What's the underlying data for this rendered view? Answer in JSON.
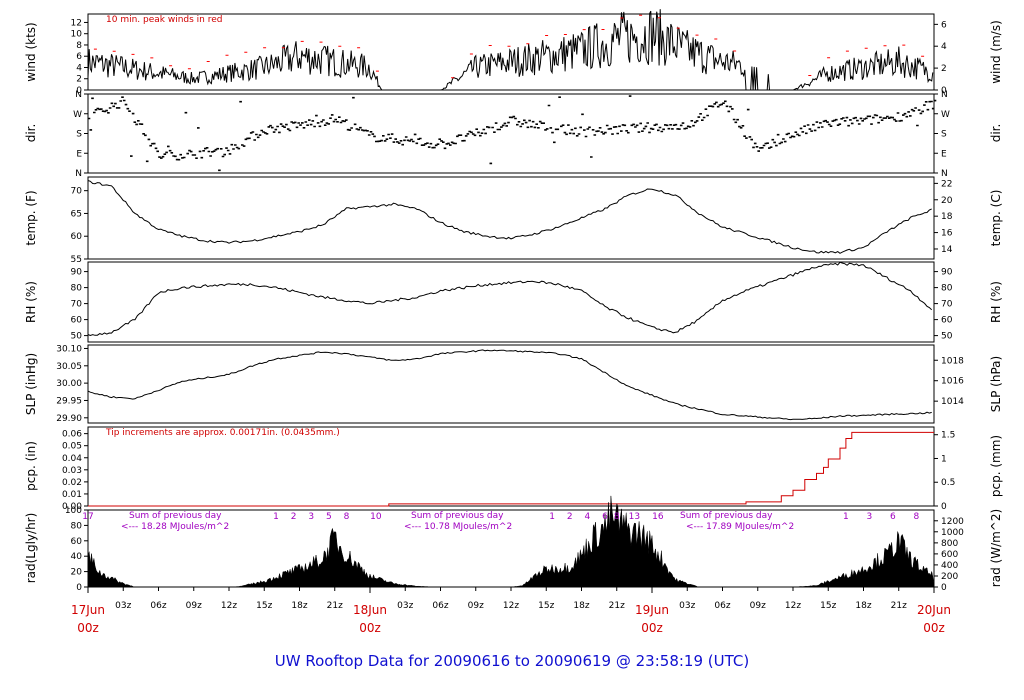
{
  "title": "UW Rooftop Data for 20090616  to  20090619 @ 23:58:19  (UTC)",
  "x_hour_labels": [
    "03z",
    "06z",
    "09z",
    "12z",
    "15z",
    "18z",
    "21z"
  ],
  "day_labels": [
    {
      "day": "17Jun",
      "time": "00z"
    },
    {
      "day": "18Jun",
      "time": "00z"
    },
    {
      "day": "19Jun",
      "time": "00z"
    },
    {
      "day": "20Jun",
      "time": "00z"
    }
  ],
  "panels": {
    "wind": {
      "ylabel_left": "wind (kts)",
      "ylabel_right": "wind (m/s)",
      "note": "10 min. peak winds in red",
      "ticks_left": [
        "0",
        "2",
        "4",
        "6",
        "8",
        "10",
        "12"
      ],
      "ticks_right": [
        "0",
        "2",
        "4",
        "6"
      ]
    },
    "dir": {
      "ylabel_left": "dir.",
      "ylabel_right": "dir.",
      "ticks": [
        "N",
        "E",
        "S",
        "W",
        "N"
      ]
    },
    "temp": {
      "ylabel_left": "temp. (F)",
      "ylabel_right": "temp. (C)",
      "ticks_left": [
        "55",
        "60",
        "65",
        "70"
      ],
      "ticks_right": [
        "14",
        "16",
        "18",
        "20",
        "22"
      ]
    },
    "rh": {
      "ylabel_left": "RH (%)",
      "ylabel_right": "RH (%)",
      "ticks_left": [
        "50",
        "60",
        "70",
        "80",
        "90"
      ],
      "ticks_right": [
        "50",
        "60",
        "70",
        "80",
        "90"
      ]
    },
    "slp": {
      "ylabel_left": "SLP (inHg)",
      "ylabel_right": "SLP (hPa)",
      "ticks_left": [
        "29.90",
        "29.95",
        "30.00",
        "30.05",
        "30.10"
      ],
      "ticks_right": [
        "1014",
        "1016",
        "1018"
      ]
    },
    "pcp": {
      "ylabel_left": "pcp. (in)",
      "ylabel_right": "pcp. (mm)",
      "note": "Tip increments are approx. 0.00171in. (0.0435mm.)",
      "ticks_left": [
        "0.00",
        "0.01",
        "0.02",
        "0.03",
        "0.04",
        "0.05",
        "0.06"
      ],
      "ticks_right": [
        "0",
        "0.5",
        "1",
        "1.5"
      ]
    },
    "rad": {
      "ylabel_left": "rad(Lgly/hr)",
      "ylabel_right": "rad (W/m^2)",
      "ticks_left": [
        "0",
        "20",
        "40",
        "60",
        "80",
        "100"
      ],
      "ticks_right": [
        "0",
        "200",
        "400",
        "600",
        "800",
        "1000",
        "1200"
      ],
      "hour_marks": [
        {
          "hour": 0,
          "label": "17"
        },
        {
          "hour": 16,
          "label": "1"
        },
        {
          "hour": 17.5,
          "label": "2"
        },
        {
          "hour": 19,
          "label": "3"
        },
        {
          "hour": 20.5,
          "label": "5"
        },
        {
          "hour": 22,
          "label": "8"
        },
        {
          "hour": 24.5,
          "label": "10"
        },
        {
          "hour": 39.5,
          "label": "1"
        },
        {
          "hour": 41,
          "label": "2"
        },
        {
          "hour": 42.5,
          "label": "4"
        },
        {
          "hour": 44,
          "label": "6"
        },
        {
          "hour": 45,
          "label": "8"
        },
        {
          "hour": 46.5,
          "label": "13"
        },
        {
          "hour": 48.5,
          "label": "16"
        },
        {
          "hour": 64.5,
          "label": "1"
        },
        {
          "hour": 66.5,
          "label": "3"
        },
        {
          "hour": 68.5,
          "label": "6"
        },
        {
          "hour": 70.5,
          "label": "8"
        }
      ],
      "daily_sums": [
        {
          "line1": "Sum of previous day",
          "line2": "<--- 18.28 MJoules/m^2"
        },
        {
          "line1": "Sum of previous day",
          "line2": "<--- 10.78 MJoules/m^2"
        },
        {
          "line1": "Sum of previous day",
          "line2": "<--- 17.89 MJoules/m^2"
        }
      ]
    }
  },
  "colors": {
    "data": "#000000",
    "peak": "#ff0000",
    "precip": "#d00000",
    "note": "#d00000",
    "sum": "#a000c0",
    "title": "#1010d0",
    "day": "#d00000"
  },
  "chart_data": [
    {
      "type": "line",
      "ylabel": "wind (kts)",
      "ylim": [
        0,
        13.5
      ],
      "x_hours": [
        0,
        3,
        6,
        9,
        12,
        15,
        18,
        21,
        24,
        25,
        30,
        33,
        36,
        39,
        42,
        45,
        48,
        51,
        54,
        57,
        60,
        63,
        66,
        69,
        72
      ],
      "series": [
        {
          "name": "wind",
          "values": [
            5,
            4,
            3,
            2,
            3,
            4,
            6,
            5,
            4,
            0,
            0,
            4,
            5,
            6,
            7,
            9,
            10,
            7,
            5,
            4,
            0,
            3,
            4,
            5,
            3
          ]
        },
        {
          "name": "10 min. peak winds",
          "values": [
            8,
            7,
            5,
            4,
            6,
            7,
            9,
            8,
            7,
            0,
            0,
            7,
            8,
            9,
            10,
            12,
            13,
            10,
            8,
            6,
            0,
            6,
            7,
            8,
            6
          ]
        }
      ]
    },
    {
      "type": "scatter",
      "ylabel": "dir.",
      "yticks": [
        "N",
        "E",
        "S",
        "W",
        "N"
      ],
      "x_hours": [
        0,
        3,
        6,
        9,
        12,
        15,
        18,
        21,
        24,
        27,
        30,
        33,
        36,
        39,
        42,
        45,
        48,
        51,
        54,
        57,
        60,
        63,
        66,
        69,
        72
      ],
      "series": [
        {
          "name": "direction_deg",
          "values": [
            260,
            330,
            80,
            90,
            110,
            200,
            220,
            250,
            170,
            150,
            130,
            180,
            240,
            210,
            190,
            200,
            210,
            220,
            330,
            100,
            180,
            230,
            240,
            260,
            320
          ]
        }
      ]
    },
    {
      "type": "line",
      "ylabel": "temp. (F)",
      "ylim": [
        55,
        73
      ],
      "x_hours": [
        0,
        2,
        4,
        6,
        8,
        10,
        12,
        14,
        16,
        18,
        20,
        22,
        24,
        26,
        28,
        30,
        32,
        34,
        36,
        38,
        40,
        42,
        44,
        46,
        48,
        50,
        52,
        54,
        56,
        58,
        60,
        62,
        64,
        66,
        68,
        70,
        72
      ],
      "series": [
        {
          "name": "temperature",
          "values": [
            72,
            71,
            65,
            61.5,
            60,
            59,
            58.6,
            59,
            60,
            61,
            62.5,
            66,
            66.5,
            67,
            66,
            63,
            61,
            60,
            59.5,
            60.5,
            62,
            64,
            66,
            69,
            70.5,
            69,
            65,
            62,
            60.5,
            59,
            57.5,
            56.5,
            56.5,
            57.5,
            61,
            64,
            66
          ]
        }
      ]
    },
    {
      "type": "line",
      "ylabel": "RH (%)",
      "ylim": [
        46,
        96
      ],
      "x_hours": [
        0,
        2,
        4,
        6,
        8,
        10,
        12,
        14,
        16,
        18,
        20,
        22,
        24,
        26,
        28,
        30,
        32,
        34,
        36,
        38,
        40,
        42,
        44,
        46,
        48,
        50,
        52,
        54,
        56,
        58,
        60,
        62,
        64,
        66,
        68,
        70,
        72
      ],
      "series": [
        {
          "name": "RH",
          "values": [
            50,
            52,
            60,
            77,
            80,
            81,
            82,
            82,
            80,
            77,
            74,
            72,
            70,
            72,
            74,
            78,
            80,
            82,
            83,
            84,
            82,
            78,
            68,
            61,
            55,
            52,
            60,
            72,
            78,
            83,
            88,
            93,
            95,
            94,
            86,
            78,
            65
          ]
        }
      ]
    },
    {
      "type": "line",
      "ylabel": "SLP (inHg)",
      "ylim": [
        29.885,
        30.11
      ],
      "x_hours": [
        0,
        2,
        4,
        6,
        8,
        10,
        12,
        14,
        16,
        18,
        20,
        22,
        24,
        26,
        28,
        30,
        32,
        34,
        36,
        38,
        40,
        42,
        44,
        46,
        48,
        50,
        52,
        54,
        56,
        58,
        60,
        62,
        64,
        66,
        68,
        70,
        72
      ],
      "series": [
        {
          "name": "SLP",
          "values": [
            29.975,
            29.96,
            29.955,
            29.98,
            30.005,
            30.015,
            30.025,
            30.05,
            30.07,
            30.08,
            30.09,
            30.085,
            30.075,
            30.065,
            30.07,
            30.085,
            30.09,
            30.095,
            30.093,
            30.09,
            30.085,
            30.07,
            30.03,
            29.99,
            29.965,
            29.94,
            29.925,
            29.91,
            29.905,
            29.9,
            29.895,
            29.898,
            29.905,
            29.907,
            29.91,
            29.912,
            29.915
          ]
        }
      ]
    },
    {
      "type": "line",
      "ylabel": "pcp. (in)",
      "ylim": [
        0,
        0.0655
      ],
      "x_hours": [
        0,
        25.5,
        25.6,
        55,
        56,
        59,
        60,
        61,
        62,
        62.6,
        63,
        64,
        64.5,
        65,
        72
      ],
      "series": [
        {
          "name": "precip",
          "values": [
            0,
            0,
            0.0017,
            0.0017,
            0.0034,
            0.0085,
            0.013,
            0.022,
            0.027,
            0.032,
            0.039,
            0.048,
            0.056,
            0.061,
            0.061
          ]
        }
      ]
    },
    {
      "type": "area",
      "ylabel": "rad(Lgly/hr)",
      "ylim": [
        0,
        100
      ],
      "x_hours": [
        0,
        1,
        3,
        4,
        6,
        8,
        10,
        12,
        13,
        15,
        17,
        18,
        19,
        20,
        21,
        21.5,
        22,
        23,
        24,
        26,
        28,
        30,
        34,
        36,
        37,
        38,
        39,
        41,
        42,
        43,
        44,
        44.5,
        45,
        46,
        47,
        48,
        49,
        50,
        52,
        60,
        62,
        63,
        66,
        67,
        68,
        69,
        70,
        71,
        72
      ],
      "series": [
        {
          "name": "radiation",
          "values": [
            45,
            20,
            5,
            0,
            0,
            0,
            0,
            0,
            1,
            8,
            20,
            25,
            32,
            40,
            70,
            55,
            45,
            30,
            15,
            5,
            1,
            0,
            0,
            0,
            2,
            15,
            25,
            28,
            45,
            70,
            85,
            100,
            95,
            80,
            75,
            60,
            35,
            10,
            0,
            0,
            2,
            8,
            25,
            35,
            45,
            65,
            40,
            25,
            15
          ]
        }
      ]
    }
  ]
}
